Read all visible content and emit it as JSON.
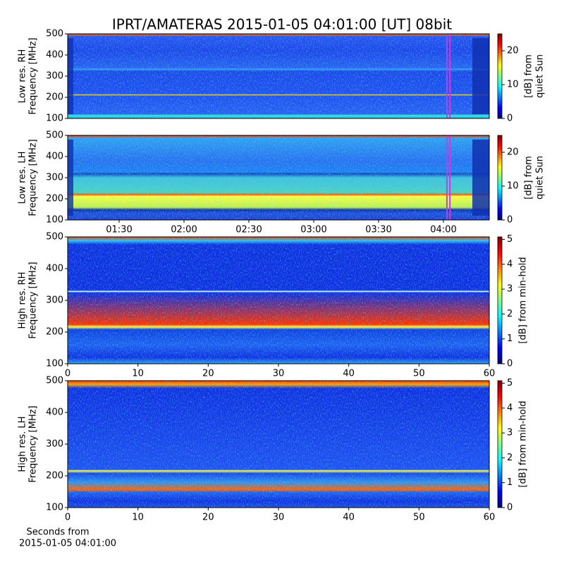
{
  "title": "IPRT/AMATERAS 2015-01-05 04:01:00 [UT]   08bit",
  "chart_data": [
    {
      "type": "heatmap",
      "y_label": [
        "Low res. RH",
        "Frequency [MHz]"
      ],
      "xlim": [
        66.2,
        261.2
      ],
      "ylim": [
        100,
        500
      ],
      "yticks": [
        100,
        200,
        300,
        400,
        500
      ],
      "colormap": "jet",
      "colorbar": {
        "label": [
          "[dB] from",
          "quiet Sun"
        ],
        "lim": [
          0,
          25
        ],
        "ticks": [
          0,
          10,
          20
        ]
      },
      "markers": {
        "color": "#c040e0",
        "x": [
          241.6,
          243
        ]
      }
    },
    {
      "type": "heatmap",
      "y_label": [
        "Low res. LH",
        "Frequency [MHz]"
      ],
      "xlim": [
        66.2,
        261.2
      ],
      "ylim": [
        100,
        500
      ],
      "yticks": [
        100,
        200,
        300,
        400,
        500
      ],
      "xticks": [
        {
          "value": 90,
          "label": "01:30"
        },
        {
          "value": 120,
          "label": "02:00"
        },
        {
          "value": 150,
          "label": "02:30"
        },
        {
          "value": 180,
          "label": "03:00"
        },
        {
          "value": 210,
          "label": "03:30"
        },
        {
          "value": 240,
          "label": "04:00"
        }
      ],
      "colormap": "jet",
      "colorbar": {
        "label": [
          "[dB] from",
          "quiet Sun"
        ],
        "lim": [
          0,
          25
        ],
        "ticks": [
          0,
          10,
          20
        ]
      },
      "markers": {
        "color": "#c040e0",
        "x": [
          241.6,
          243
        ]
      }
    },
    {
      "type": "heatmap",
      "y_label": [
        "High res. RH",
        "Frequency [MHz]"
      ],
      "xlim": [
        0,
        60
      ],
      "xticks": [
        0,
        10,
        20,
        30,
        40,
        50,
        60
      ],
      "ylim": [
        100,
        500
      ],
      "yticks": [
        100,
        200,
        300,
        400,
        500
      ],
      "colormap": "jet",
      "colorbar": {
        "label": [
          "[dB] from min-hold"
        ],
        "lim": [
          0,
          5.1
        ],
        "ticks": [
          0,
          1,
          2,
          3,
          4,
          5
        ]
      }
    },
    {
      "type": "heatmap",
      "y_label": [
        "High res. LH",
        "Frequency [MHz]"
      ],
      "xlim": [
        0,
        60
      ],
      "xticks": [
        0,
        10,
        20,
        30,
        40,
        50,
        60
      ],
      "ylim": [
        100,
        500
      ],
      "yticks": [
        100,
        200,
        300,
        400,
        500
      ],
      "x_label": [
        "Seconds from",
        "2015-01-05 04:01:00"
      ],
      "colormap": "jet",
      "colorbar": {
        "label": [
          "[dB] from min-hold"
        ],
        "lim": [
          0,
          5.1
        ],
        "ticks": [
          0,
          1,
          2,
          3,
          4,
          5
        ]
      }
    }
  ]
}
